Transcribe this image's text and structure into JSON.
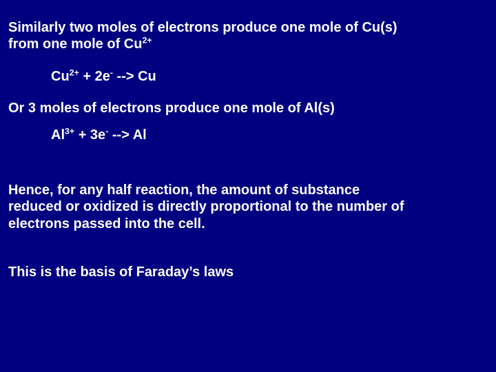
{
  "slide": {
    "background_color": "#000080",
    "text_color": "#ffffff",
    "font_family": "Arial",
    "font_weight": "bold",
    "font_size_pt": 20,
    "para1_a": "Similarly two moles of electrons produce one mole of Cu(s)",
    "para1_b": "from one mole of Cu",
    "para1_b_sup": "2+",
    "eq1_pre": "Cu",
    "eq1_sup1": "2+",
    "eq1_mid": " + 2e",
    "eq1_sup2": "-",
    "eq1_post": " --> Cu",
    "para2": "Or 3 moles of electrons produce one mole of Al(s)",
    "eq2_pre": "Al",
    "eq2_sup1": "3+",
    "eq2_mid": " + 3e",
    "eq2_sup2": "-",
    "eq2_post": " --> Al",
    "para3_a": "Hence, for any half reaction, the amount of substance",
    "para3_b": "reduced or oxidized is directly proportional to the number of",
    "para3_c": "electrons passed into the cell.",
    "para4": "This is the basis of Faraday’s laws"
  }
}
